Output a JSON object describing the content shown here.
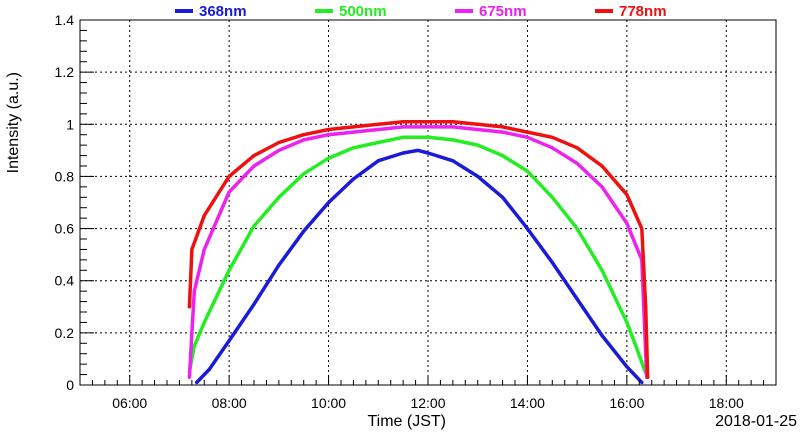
{
  "chart_data": {
    "type": "line",
    "xlabel": "Time (JST)",
    "ylabel": "Intensity (a.u.)",
    "date_label": "2018-01-25",
    "x_unit": "hours",
    "xlim": [
      5.0,
      19.0
    ],
    "ylim": [
      0,
      1.4
    ],
    "x_ticks": [
      6,
      8,
      10,
      12,
      14,
      16,
      18
    ],
    "x_tick_labels": [
      "06:00",
      "08:00",
      "10:00",
      "12:00",
      "14:00",
      "16:00",
      "18:00"
    ],
    "y_ticks": [
      0,
      0.2,
      0.4,
      0.6,
      0.8,
      1,
      1.2,
      1.4
    ],
    "y_tick_labels": [
      "0",
      "0.2",
      "0.4",
      "0.6",
      "0.8",
      "1",
      "1.2",
      "1.4"
    ],
    "grid": true,
    "legend_position": "top",
    "series": [
      {
        "name": "368nm",
        "color": "#1a1adb",
        "x": [
          7.35,
          7.6,
          8.0,
          8.5,
          9.0,
          9.5,
          10.0,
          10.5,
          11.0,
          11.5,
          11.8,
          12.0,
          12.5,
          13.0,
          13.5,
          14.0,
          14.5,
          15.0,
          15.5,
          16.0,
          16.3
        ],
        "y": [
          0.01,
          0.06,
          0.17,
          0.31,
          0.46,
          0.59,
          0.7,
          0.79,
          0.86,
          0.89,
          0.9,
          0.89,
          0.86,
          0.8,
          0.72,
          0.6,
          0.47,
          0.33,
          0.19,
          0.07,
          0.01
        ]
      },
      {
        "name": "500nm",
        "color": "#22ee22",
        "x": [
          7.2,
          7.3,
          7.5,
          8.0,
          8.5,
          9.0,
          9.5,
          10.0,
          10.5,
          11.0,
          11.5,
          12.0,
          12.5,
          13.0,
          13.5,
          14.0,
          14.5,
          15.0,
          15.5,
          16.0,
          16.2,
          16.35,
          16.42
        ],
        "y": [
          0.05,
          0.15,
          0.24,
          0.44,
          0.61,
          0.72,
          0.81,
          0.87,
          0.91,
          0.93,
          0.95,
          0.95,
          0.94,
          0.92,
          0.88,
          0.82,
          0.72,
          0.6,
          0.44,
          0.24,
          0.14,
          0.06,
          0.03
        ]
      },
      {
        "name": "675nm",
        "color": "#ee22ee",
        "x": [
          7.2,
          7.25,
          7.3,
          7.5,
          8.0,
          8.5,
          9.0,
          9.5,
          10.0,
          10.5,
          11.0,
          11.5,
          12.0,
          12.5,
          13.0,
          13.5,
          14.0,
          14.5,
          15.0,
          15.5,
          16.0,
          16.3,
          16.4
        ],
        "y": [
          0.03,
          0.2,
          0.36,
          0.52,
          0.74,
          0.84,
          0.9,
          0.94,
          0.96,
          0.97,
          0.98,
          0.99,
          0.99,
          0.99,
          0.98,
          0.97,
          0.95,
          0.91,
          0.85,
          0.76,
          0.62,
          0.48,
          0.03
        ]
      },
      {
        "name": "778nm",
        "color": "#ee1111",
        "x": [
          7.2,
          7.25,
          7.5,
          8.0,
          8.5,
          9.0,
          9.5,
          10.0,
          10.5,
          11.0,
          11.5,
          12.0,
          12.5,
          13.0,
          13.5,
          14.0,
          14.5,
          15.0,
          15.5,
          16.0,
          16.3,
          16.38,
          16.42
        ],
        "y": [
          0.3,
          0.52,
          0.65,
          0.8,
          0.88,
          0.93,
          0.96,
          0.98,
          0.99,
          1.0,
          1.01,
          1.01,
          1.01,
          1.0,
          0.99,
          0.97,
          0.95,
          0.91,
          0.84,
          0.73,
          0.6,
          0.3,
          0.03
        ]
      }
    ]
  }
}
